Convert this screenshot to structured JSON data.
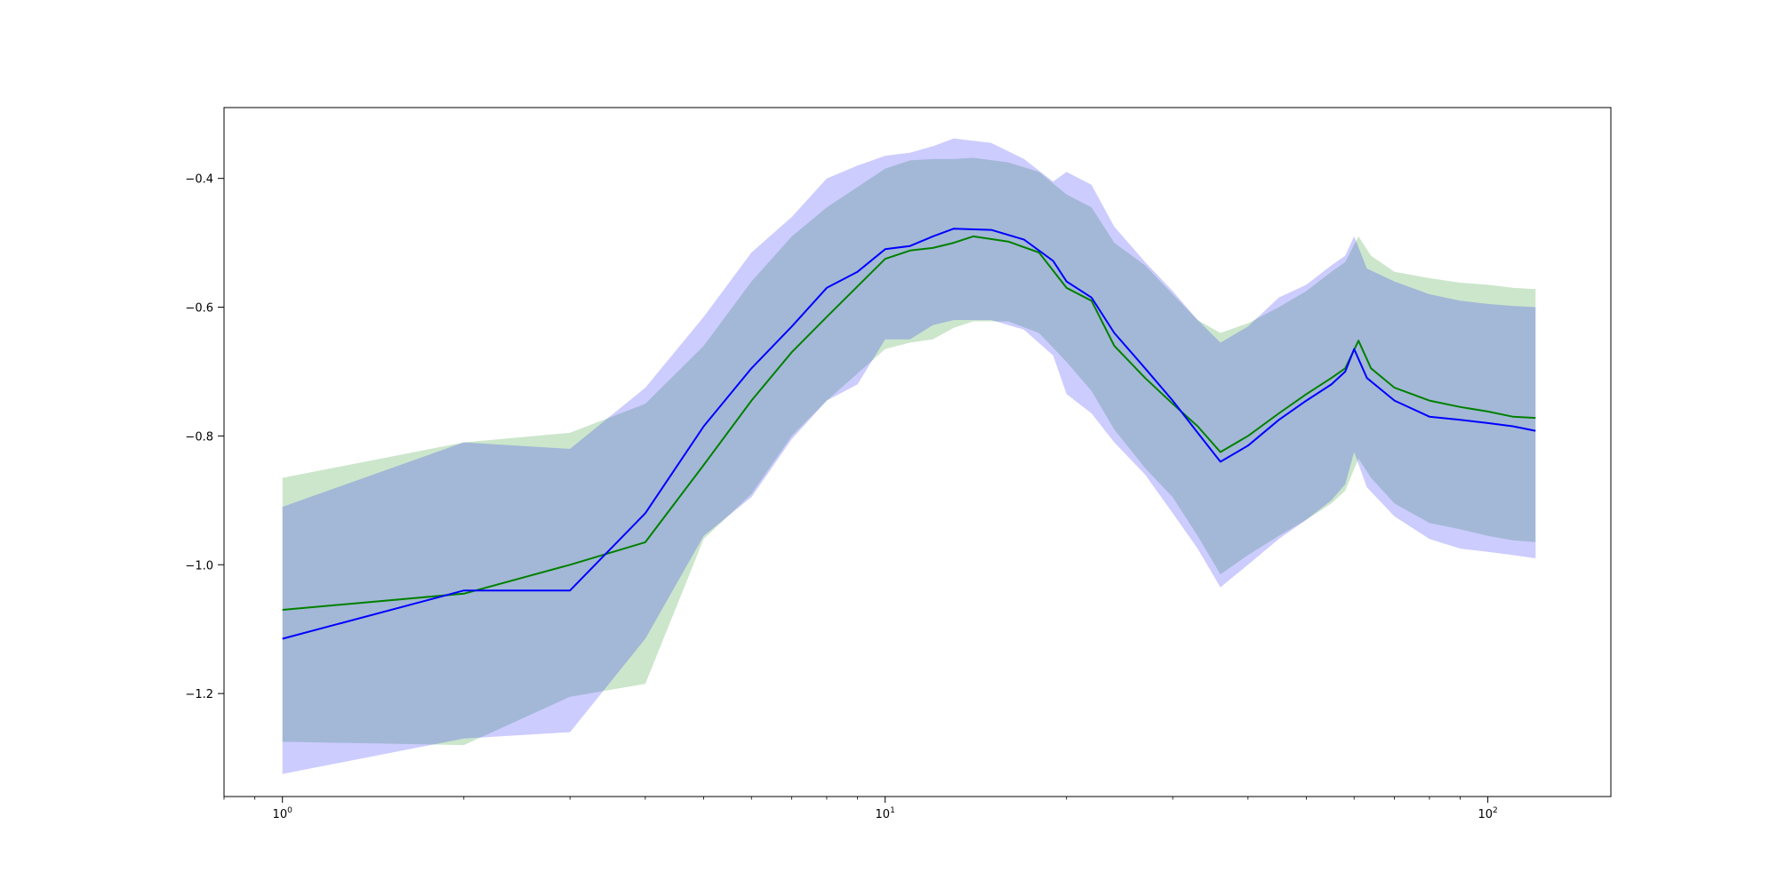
{
  "chart_data": {
    "type": "line",
    "title": "",
    "xlabel": "",
    "ylabel": "",
    "xscale": "log",
    "xlim": [
      0.8,
      160
    ],
    "ylim": [
      -1.36,
      -0.29
    ],
    "grid": false,
    "legend": "none",
    "x_ticks": [
      {
        "value": 1,
        "base": "10",
        "exp": "0"
      },
      {
        "value": 10,
        "base": "10",
        "exp": "1"
      },
      {
        "value": 100,
        "base": "10",
        "exp": "2"
      }
    ],
    "y_ticks": [
      {
        "value": -1.2,
        "label": "−1.2"
      },
      {
        "value": -1.0,
        "label": "−1.0"
      },
      {
        "value": -0.8,
        "label": "−0.8"
      },
      {
        "value": -0.6,
        "label": "−0.6"
      },
      {
        "value": -0.4,
        "label": "−0.4"
      }
    ],
    "series": [
      {
        "color": "#008000",
        "band_color": "#008000",
        "points": [
          [
            1,
            -1.07,
            -1.275,
            -0.865
          ],
          [
            2,
            -1.045,
            -1.28,
            -0.81
          ],
          [
            3,
            -1.0,
            -1.205,
            -0.795
          ],
          [
            4,
            -0.965,
            -1.185,
            -0.75
          ],
          [
            5,
            -0.845,
            -0.96,
            -0.66
          ],
          [
            6,
            -0.745,
            -0.89,
            -0.56
          ],
          [
            7,
            -0.67,
            -0.8,
            -0.49
          ],
          [
            8,
            -0.615,
            -0.745,
            -0.445
          ],
          [
            10,
            -0.525,
            -0.665,
            -0.385
          ],
          [
            11,
            -0.512,
            -0.655,
            -0.372
          ],
          [
            12,
            -0.508,
            -0.65,
            -0.37
          ],
          [
            13,
            -0.5,
            -0.632,
            -0.37
          ],
          [
            14,
            -0.49,
            -0.622,
            -0.368
          ],
          [
            16,
            -0.498,
            -0.622,
            -0.375
          ],
          [
            18,
            -0.515,
            -0.64,
            -0.39
          ],
          [
            20,
            -0.57,
            -0.685,
            -0.425
          ],
          [
            22,
            -0.59,
            -0.73,
            -0.445
          ],
          [
            24,
            -0.66,
            -0.79,
            -0.5
          ],
          [
            27,
            -0.71,
            -0.85,
            -0.535
          ],
          [
            30,
            -0.75,
            -0.895,
            -0.58
          ],
          [
            33,
            -0.785,
            -0.955,
            -0.62
          ],
          [
            36,
            -0.825,
            -1.015,
            -0.64
          ],
          [
            40,
            -0.8,
            -0.985,
            -0.625
          ],
          [
            45,
            -0.765,
            -0.955,
            -0.6
          ],
          [
            50,
            -0.735,
            -0.93,
            -0.575
          ],
          [
            55,
            -0.71,
            -0.905,
            -0.545
          ],
          [
            58,
            -0.695,
            -0.885,
            -0.53
          ],
          [
            61,
            -0.652,
            -0.835,
            -0.49
          ],
          [
            64,
            -0.695,
            -0.865,
            -0.52
          ],
          [
            70,
            -0.725,
            -0.905,
            -0.545
          ],
          [
            80,
            -0.745,
            -0.935,
            -0.555
          ],
          [
            90,
            -0.755,
            -0.945,
            -0.562
          ],
          [
            100,
            -0.762,
            -0.955,
            -0.565
          ],
          [
            110,
            -0.77,
            -0.962,
            -0.57
          ],
          [
            120,
            -0.772,
            -0.965,
            -0.572
          ]
        ]
      },
      {
        "color": "#0000ff",
        "band_color": "#0000ff",
        "points": [
          [
            1,
            -1.115,
            -1.325,
            -0.91
          ],
          [
            2,
            -1.04,
            -1.27,
            -0.81
          ],
          [
            3,
            -1.04,
            -1.26,
            -0.82
          ],
          [
            4,
            -0.92,
            -1.115,
            -0.725
          ],
          [
            5,
            -0.785,
            -0.955,
            -0.615
          ],
          [
            6,
            -0.695,
            -0.895,
            -0.515
          ],
          [
            7,
            -0.63,
            -0.805,
            -0.46
          ],
          [
            8,
            -0.57,
            -0.745,
            -0.4
          ],
          [
            9,
            -0.545,
            -0.72,
            -0.38
          ],
          [
            10,
            -0.51,
            -0.65,
            -0.365
          ],
          [
            11,
            -0.505,
            -0.65,
            -0.36
          ],
          [
            12,
            -0.49,
            -0.628,
            -0.35
          ],
          [
            13,
            -0.478,
            -0.62,
            -0.338
          ],
          [
            15,
            -0.48,
            -0.62,
            -0.345
          ],
          [
            17,
            -0.495,
            -0.635,
            -0.37
          ],
          [
            19,
            -0.528,
            -0.675,
            -0.405
          ],
          [
            20,
            -0.56,
            -0.735,
            -0.39
          ],
          [
            22,
            -0.585,
            -0.765,
            -0.41
          ],
          [
            24,
            -0.64,
            -0.81,
            -0.475
          ],
          [
            27,
            -0.695,
            -0.86,
            -0.53
          ],
          [
            30,
            -0.745,
            -0.92,
            -0.575
          ],
          [
            33,
            -0.795,
            -0.975,
            -0.62
          ],
          [
            36,
            -0.84,
            -1.035,
            -0.655
          ],
          [
            40,
            -0.815,
            -1.0,
            -0.63
          ],
          [
            45,
            -0.775,
            -0.96,
            -0.585
          ],
          [
            50,
            -0.745,
            -0.93,
            -0.565
          ],
          [
            55,
            -0.72,
            -0.9,
            -0.535
          ],
          [
            58,
            -0.7,
            -0.875,
            -0.52
          ],
          [
            60,
            -0.665,
            -0.825,
            -0.49
          ],
          [
            63,
            -0.71,
            -0.88,
            -0.54
          ],
          [
            70,
            -0.745,
            -0.925,
            -0.56
          ],
          [
            80,
            -0.77,
            -0.96,
            -0.58
          ],
          [
            90,
            -0.775,
            -0.975,
            -0.59
          ],
          [
            100,
            -0.78,
            -0.98,
            -0.595
          ],
          [
            110,
            -0.785,
            -0.985,
            -0.598
          ],
          [
            120,
            -0.792,
            -0.99,
            -0.6
          ]
        ]
      }
    ]
  }
}
